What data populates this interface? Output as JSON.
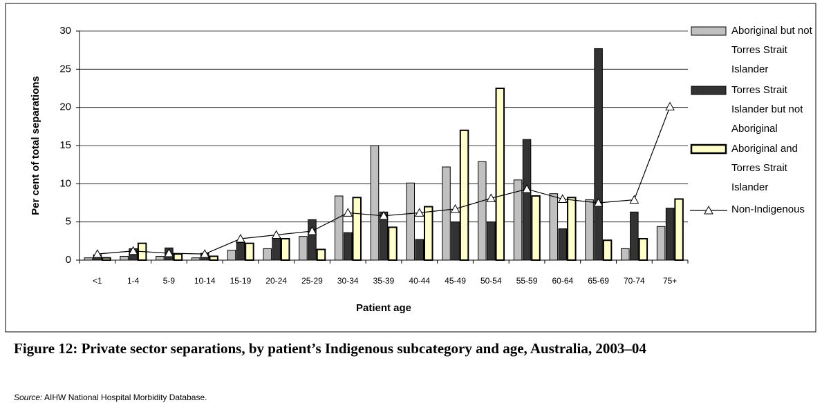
{
  "chart_data": {
    "type": "bar",
    "y_label": "Per cent of total separations",
    "x_label": "Patient age",
    "categories": [
      "<1",
      "1-4",
      "5-9",
      "10-14",
      "15-19",
      "20-24",
      "25-29",
      "30-34",
      "35-39",
      "40-44",
      "45-49",
      "50-54",
      "55-59",
      "60-64",
      "65-69",
      "70-74",
      "75+"
    ],
    "series": [
      {
        "name": "Aboriginal but not Torres Strait Islander",
        "color": "#c0c0c0",
        "values": [
          0.3,
          0.5,
          0.5,
          0.3,
          1.3,
          1.5,
          3.1,
          8.4,
          15.0,
          10.1,
          12.2,
          12.9,
          10.5,
          8.7,
          7.9,
          1.5,
          4.4
        ]
      },
      {
        "name": "Torres Strait Islander but not Aboriginal",
        "color": "#333333",
        "values": [
          0.7,
          1.5,
          1.6,
          0.9,
          2.3,
          3.0,
          5.3,
          3.6,
          6.3,
          2.7,
          5.0,
          5.0,
          15.8,
          4.1,
          27.7,
          6.3,
          6.8
        ]
      },
      {
        "name": "Aboriginal and Torres Strait Islander",
        "color": "#ffffcc",
        "values": [
          0.3,
          2.2,
          0.8,
          0.5,
          2.2,
          2.8,
          1.4,
          8.2,
          4.3,
          7.0,
          17.0,
          22.5,
          8.4,
          8.2,
          2.6,
          2.8,
          8.0
        ]
      },
      {
        "name": "Non-Indigenous",
        "type": "line",
        "color": "#000000",
        "values": [
          0.8,
          1.2,
          0.9,
          0.8,
          2.8,
          3.3,
          3.8,
          6.2,
          5.8,
          6.2,
          6.7,
          8.1,
          9.3,
          8.0,
          7.5,
          7.9,
          20.1
        ]
      }
    ],
    "ylim": [
      0,
      30
    ],
    "yticks": [
      0,
      5,
      10,
      15,
      20,
      25,
      30
    ],
    "grid": true,
    "legend": "right"
  },
  "caption": "Figure 12: Private sector separations, by patient’s Indigenous subcategory and age, Australia, 2003–04",
  "source_label": "Source:",
  "source_text": "AIHW National Hospital Morbidity Database."
}
